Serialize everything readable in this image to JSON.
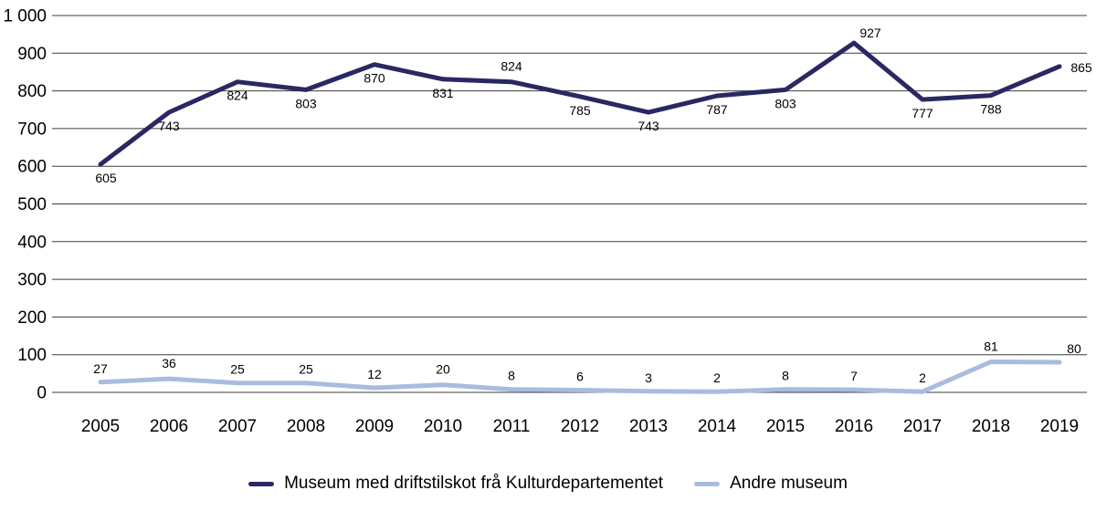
{
  "chart_data": {
    "type": "line",
    "x": [
      "2005",
      "2006",
      "2007",
      "2008",
      "2009",
      "2010",
      "2011",
      "2012",
      "2013",
      "2014",
      "2015",
      "2016",
      "2017",
      "2018",
      "2019"
    ],
    "series": [
      {
        "name": "Museum med driftstilskot frå Kulturdepartementet",
        "color": "#2a2862",
        "values": [
          605,
          743,
          824,
          803,
          870,
          831,
          824,
          785,
          743,
          787,
          803,
          927,
          777,
          788,
          865
        ],
        "label_offsets": [
          [
            6,
            20
          ],
          [
            0,
            20
          ],
          [
            0,
            20
          ],
          [
            0,
            20
          ],
          [
            0,
            20
          ],
          [
            0,
            20
          ],
          [
            0,
            -12
          ],
          [
            0,
            20
          ],
          [
            0,
            20
          ],
          [
            0,
            20
          ],
          [
            0,
            20
          ],
          [
            18,
            -6
          ],
          [
            0,
            20
          ],
          [
            0,
            20
          ],
          [
            24,
            6
          ]
        ]
      },
      {
        "name": "Andre museum",
        "color": "#a9bbdf",
        "values": [
          27,
          36,
          25,
          25,
          12,
          20,
          8,
          6,
          3,
          2,
          8,
          7,
          2,
          81,
          80
        ],
        "label_offsets": [
          [
            0,
            -10
          ],
          [
            0,
            -12
          ],
          [
            0,
            -10
          ],
          [
            0,
            -10
          ],
          [
            0,
            -10
          ],
          [
            0,
            -12
          ],
          [
            0,
            -10
          ],
          [
            0,
            -10
          ],
          [
            0,
            -10
          ],
          [
            0,
            -10
          ],
          [
            0,
            -10
          ],
          [
            0,
            -10
          ],
          [
            0,
            -10
          ],
          [
            0,
            -12
          ],
          [
            16,
            -10
          ]
        ]
      }
    ],
    "ylim": [
      0,
      1000
    ],
    "y_ticks": [
      1000,
      900,
      800,
      700,
      600,
      500,
      400,
      300,
      200,
      100,
      0
    ],
    "y_tick_labels": [
      "1 000",
      "900",
      "800",
      "700",
      "600",
      "500",
      "400",
      "300",
      "200",
      "100",
      "0"
    ],
    "grid": "horizontal",
    "legend_position": "bottom"
  },
  "style": {
    "gridline_color": "#3d3d3d",
    "text_color": "#000000"
  }
}
